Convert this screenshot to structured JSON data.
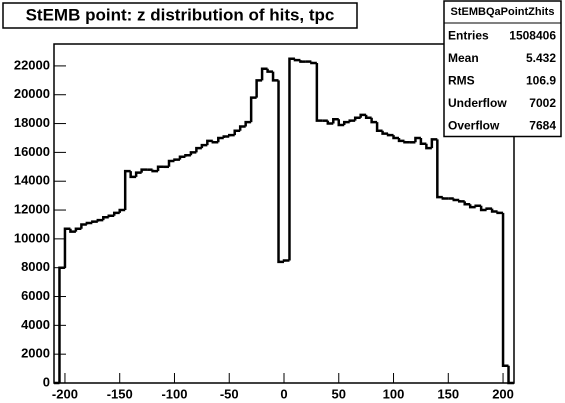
{
  "chart_data": {
    "type": "histogram",
    "title": "StEMB point: z distribution of hits, tpc",
    "bins": [
      -210,
      -205,
      -200,
      -195,
      -190,
      -185,
      -180,
      -175,
      -170,
      -165,
      -160,
      -155,
      -150,
      -145,
      -140,
      -135,
      -130,
      -125,
      -120,
      -115,
      -110,
      -105,
      -100,
      -95,
      -90,
      -85,
      -80,
      -75,
      -70,
      -65,
      -60,
      -55,
      -50,
      -45,
      -40,
      -35,
      -30,
      -25,
      -20,
      -15,
      -10,
      -5,
      0,
      5,
      10,
      15,
      20,
      25,
      30,
      35,
      40,
      45,
      50,
      55,
      60,
      65,
      70,
      75,
      80,
      85,
      90,
      95,
      100,
      105,
      110,
      115,
      120,
      125,
      130,
      135,
      140,
      145,
      150,
      155,
      160,
      165,
      170,
      175,
      180,
      185,
      190,
      195,
      200,
      205,
      210
    ],
    "values": [
      0,
      8000,
      10700,
      10500,
      10700,
      11000,
      11100,
      11200,
      11300,
      11500,
      11600,
      11800,
      12000,
      14700,
      14300,
      14600,
      14800,
      14800,
      14700,
      15000,
      15000,
      15400,
      15500,
      15700,
      15800,
      16000,
      16300,
      16500,
      16800,
      16700,
      17000,
      17100,
      17200,
      17500,
      17800,
      18100,
      19800,
      21000,
      21800,
      21600,
      21000,
      8400,
      8500,
      22500,
      22400,
      22300,
      22300,
      22200,
      18200,
      18200,
      18000,
      18300,
      17900,
      18100,
      18200,
      18400,
      18600,
      18400,
      18100,
      17500,
      17300,
      17200,
      17000,
      16800,
      16700,
      16700,
      17000,
      16600,
      16300,
      16900,
      12900,
      12800,
      12800,
      12700,
      12600,
      12400,
      12200,
      12300,
      12000,
      12100,
      11900,
      11800,
      1200,
      0
    ],
    "color": "#000000",
    "xlim": [
      -210,
      210
    ],
    "xticks": [
      -200,
      -150,
      -100,
      -50,
      0,
      50,
      100,
      150,
      200
    ],
    "ylim": [
      0,
      23520
    ],
    "yticks": [
      0,
      2000,
      4000,
      6000,
      8000,
      10000,
      12000,
      14000,
      16000,
      18000,
      20000,
      22000
    ],
    "stats": {
      "title": "StEMBQaPointZhits",
      "rows": [
        {
          "label": "Entries",
          "value": 1508406
        },
        {
          "label": "Mean",
          "value": 5.432
        },
        {
          "label": "RMS",
          "value": 106.9
        },
        {
          "label": "Underflow",
          "value": 7002
        },
        {
          "label": "Overflow",
          "value": 7684
        }
      ]
    }
  }
}
